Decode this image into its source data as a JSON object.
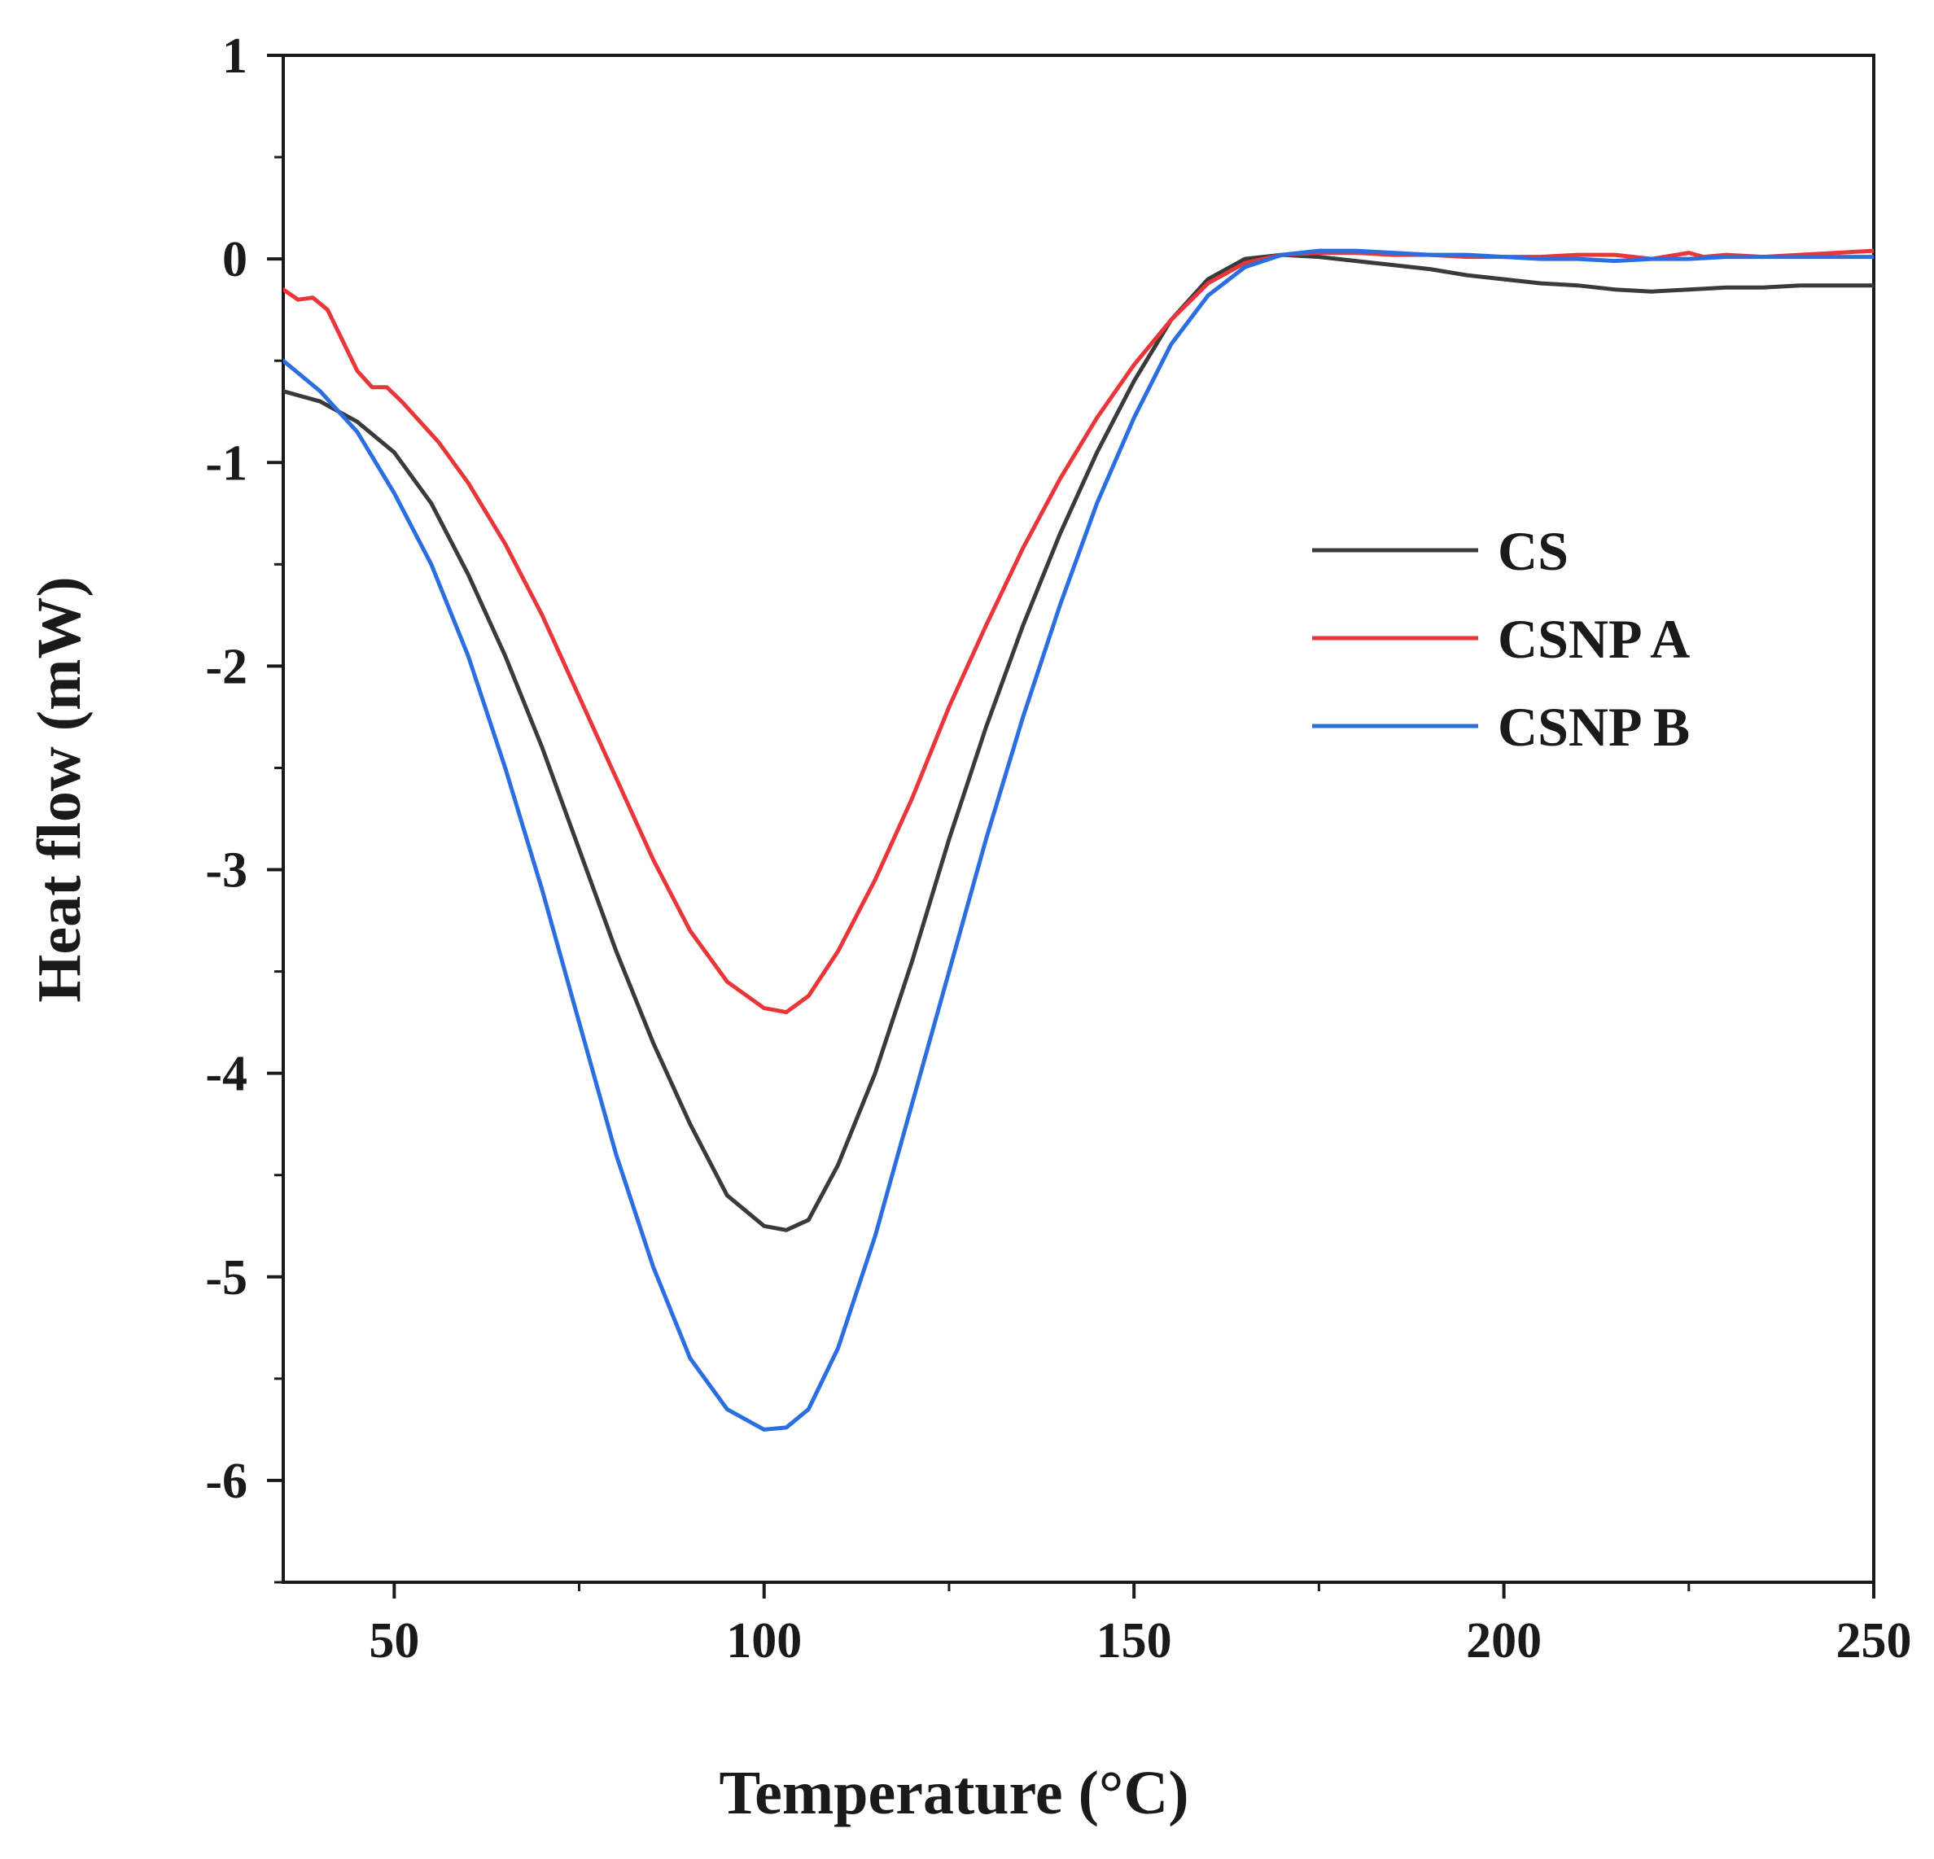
{
  "chart_data": {
    "type": "line",
    "title": "",
    "xlabel": "Temperature (°C)",
    "ylabel": "Heat flow (mW)",
    "xlim": [
      35,
      250
    ],
    "ylim": [
      -6.5,
      1
    ],
    "x_ticks": [
      50,
      100,
      150,
      200,
      250
    ],
    "x_tick_labels": [
      "50",
      "100",
      "150",
      "200",
      "250"
    ],
    "x_minor_ticks": [
      75,
      125,
      175,
      225
    ],
    "y_ticks": [
      1,
      0,
      -1,
      -2,
      -3,
      -4,
      -5,
      -6
    ],
    "y_tick_labels": [
      "1",
      "0",
      "-1",
      "-2",
      "-3",
      "-4",
      "-5",
      "-6"
    ],
    "y_minor_ticks": [
      0.5,
      -0.5,
      -1.5,
      -2.5,
      -3.5,
      -4.5,
      -5.5,
      -6.5
    ],
    "grid": false,
    "legend_position": "right-center",
    "series": [
      {
        "name": "CS",
        "color": "#3a3a3a",
        "x": [
          35,
          40,
          45,
          50,
          55,
          60,
          65,
          70,
          75,
          80,
          85,
          90,
          95,
          100,
          103,
          106,
          110,
          115,
          120,
          125,
          130,
          135,
          140,
          145,
          150,
          155,
          160,
          165,
          170,
          175,
          180,
          185,
          190,
          195,
          200,
          205,
          210,
          215,
          220,
          225,
          230,
          235,
          240,
          245,
          250
        ],
        "y": [
          -0.65,
          -0.7,
          -0.8,
          -0.95,
          -1.2,
          -1.55,
          -1.95,
          -2.4,
          -2.9,
          -3.4,
          -3.85,
          -4.25,
          -4.6,
          -4.75,
          -4.77,
          -4.72,
          -4.45,
          -4.0,
          -3.45,
          -2.85,
          -2.3,
          -1.8,
          -1.35,
          -0.95,
          -0.6,
          -0.3,
          -0.1,
          0.0,
          0.02,
          0.01,
          -0.01,
          -0.03,
          -0.05,
          -0.08,
          -0.1,
          -0.12,
          -0.13,
          -0.15,
          -0.16,
          -0.15,
          -0.14,
          -0.14,
          -0.13,
          -0.13,
          -0.13
        ]
      },
      {
        "name": "CSNP A",
        "color": "#e8363a",
        "x": [
          35,
          37,
          39,
          41,
          43,
          45,
          47,
          49,
          51,
          53,
          56,
          60,
          65,
          70,
          75,
          80,
          85,
          90,
          95,
          100,
          103,
          106,
          110,
          115,
          120,
          125,
          130,
          135,
          140,
          145,
          150,
          155,
          160,
          165,
          170,
          175,
          180,
          185,
          190,
          195,
          200,
          205,
          210,
          215,
          220,
          225,
          227,
          230,
          235,
          240,
          245,
          250
        ],
        "y": [
          -0.15,
          -0.2,
          -0.19,
          -0.25,
          -0.4,
          -0.55,
          -0.63,
          -0.63,
          -0.7,
          -0.78,
          -0.9,
          -1.1,
          -1.4,
          -1.75,
          -2.15,
          -2.55,
          -2.95,
          -3.3,
          -3.55,
          -3.68,
          -3.7,
          -3.62,
          -3.4,
          -3.05,
          -2.65,
          -2.2,
          -1.8,
          -1.42,
          -1.08,
          -0.78,
          -0.52,
          -0.3,
          -0.12,
          -0.02,
          0.02,
          0.03,
          0.03,
          0.02,
          0.02,
          0.01,
          0.01,
          0.01,
          0.02,
          0.02,
          0.0,
          0.03,
          0.01,
          0.02,
          0.01,
          0.02,
          0.03,
          0.04
        ]
      },
      {
        "name": "CSNP B",
        "color": "#2a6ee0",
        "x": [
          35,
          40,
          45,
          50,
          55,
          60,
          65,
          70,
          75,
          80,
          85,
          90,
          95,
          100,
          103,
          106,
          110,
          115,
          120,
          125,
          130,
          135,
          140,
          145,
          150,
          155,
          160,
          165,
          170,
          175,
          180,
          185,
          190,
          195,
          200,
          205,
          210,
          215,
          220,
          225,
          230,
          235,
          240,
          245,
          250
        ],
        "y": [
          -0.5,
          -0.65,
          -0.85,
          -1.15,
          -1.5,
          -1.95,
          -2.5,
          -3.1,
          -3.75,
          -4.4,
          -4.95,
          -5.4,
          -5.65,
          -5.75,
          -5.74,
          -5.65,
          -5.35,
          -4.8,
          -4.15,
          -3.5,
          -2.85,
          -2.25,
          -1.7,
          -1.2,
          -0.78,
          -0.42,
          -0.18,
          -0.04,
          0.02,
          0.04,
          0.04,
          0.03,
          0.02,
          0.02,
          0.01,
          0.0,
          0.0,
          -0.01,
          0.0,
          0.0,
          0.01,
          0.01,
          0.01,
          0.01,
          0.01
        ]
      }
    ]
  }
}
